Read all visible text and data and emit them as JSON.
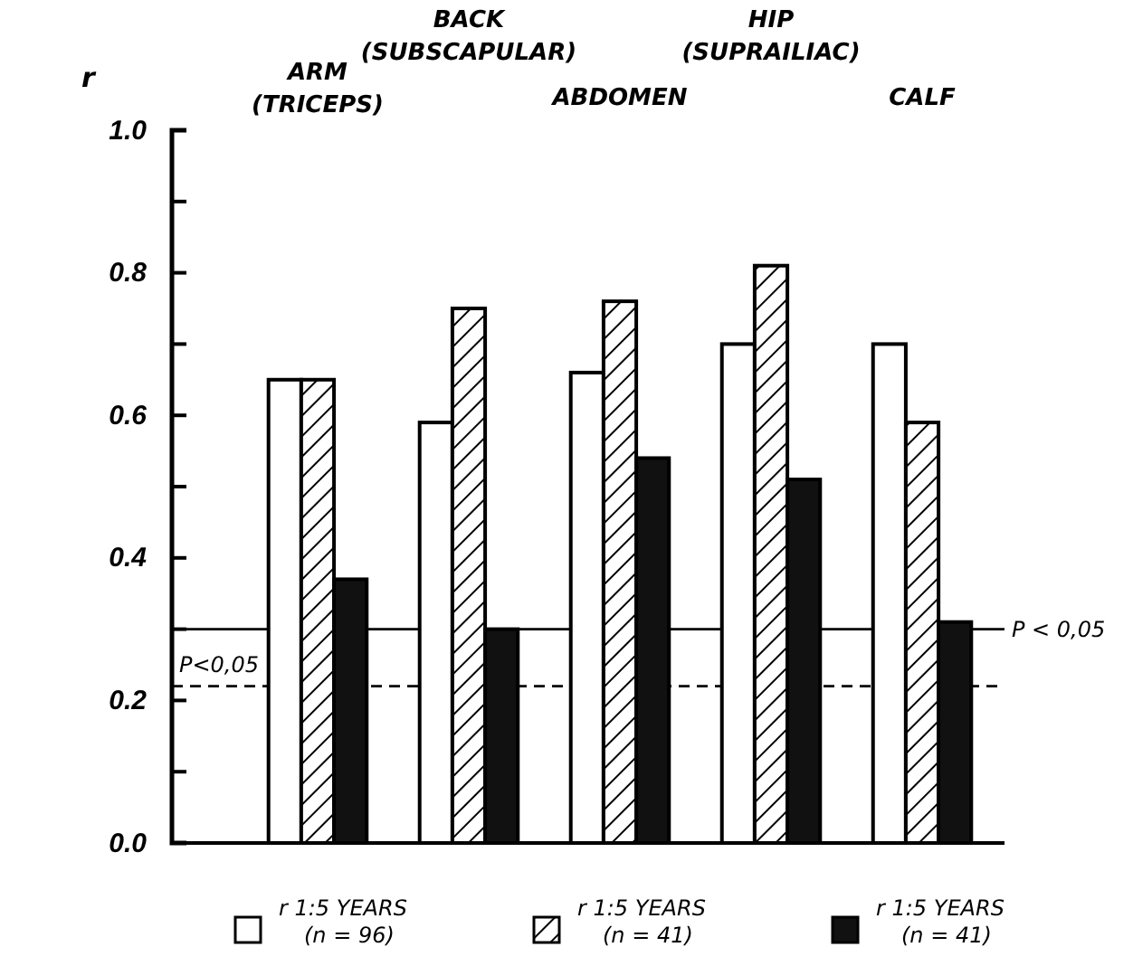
{
  "chart_data": {
    "type": "bar",
    "ylabel": "r",
    "categories": [
      "ARM (TRICEPS)",
      "BACK (SUBSCAPULAR)",
      "ABDOMEN",
      "HIP (SUPRAILIAC)",
      "CALF"
    ],
    "series": [
      {
        "name": "r 1:5 YEARS (n = 96)",
        "color": "#ffffff",
        "values": [
          0.65,
          0.59,
          0.66,
          0.7,
          0.7
        ]
      },
      {
        "name": "r 1:5 YEARS (n = 41)",
        "color": "#000000",
        "values": [
          0.65,
          0.75,
          0.76,
          0.81,
          0.59
        ]
      },
      {
        "name": "r 1:5 YEARS (n = 41)",
        "color": "#111111",
        "values": [
          0.37,
          0.3,
          0.54,
          0.51,
          0.31
        ]
      }
    ],
    "ylim": [
      0,
      1.0
    ],
    "yticks": [
      {
        "value": 0,
        "label": "0.0"
      },
      {
        "value": 0.1,
        "label": null
      },
      {
        "value": 0.2,
        "label": "0.2"
      },
      {
        "value": 0.3,
        "label": null
      },
      {
        "value": 0.4,
        "label": "0.4"
      },
      {
        "value": 0.5,
        "label": null
      },
      {
        "value": 0.6,
        "label": "0.6"
      },
      {
        "value": 0.7,
        "label": null
      },
      {
        "value": 0.8,
        "label": "0.8"
      },
      {
        "value": 0.9,
        "label": null
      },
      {
        "value": 1.0,
        "label": "1.0"
      }
    ],
    "ref_lines": [
      {
        "axis": "y",
        "value": 0.3,
        "label": "P < 0,05",
        "line_style": "solid"
      },
      {
        "axis": "y",
        "value": 0.22,
        "label": "P<0,05",
        "line_style": "dashed"
      }
    ],
    "legend": "bottom"
  }
}
